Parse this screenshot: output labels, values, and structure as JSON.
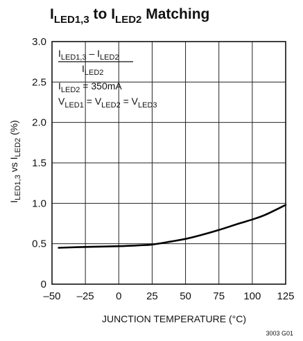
{
  "chart_data": {
    "type": "line",
    "title": {
      "main": "I",
      "sub1": "LED1,3",
      "mid": " to I",
      "sub2": "LED2",
      "tail": " Matching"
    },
    "xlabel": "JUNCTION TEMPERATURE (°C)",
    "ylabel": {
      "a": "I",
      "a_sub": "LED1,3",
      "b": " vs I",
      "b_sub": "LED2",
      "c": " (%)"
    },
    "xlim": [
      -50,
      125
    ],
    "ylim": [
      0,
      3.0
    ],
    "xticks": [
      -50,
      -25,
      0,
      25,
      50,
      75,
      100,
      125
    ],
    "xtick_labels": [
      "–50",
      "–25",
      "0",
      "25",
      "50",
      "75",
      "100",
      "125"
    ],
    "yticks": [
      0,
      0.5,
      1.0,
      1.5,
      2.0,
      2.5,
      3.0
    ],
    "ytick_labels": [
      "0",
      "0.5",
      "1.0",
      "1.5",
      "2.0",
      "2.5",
      "3.0"
    ],
    "grid": true,
    "series": [
      {
        "x": [
          -45,
          -25,
          0,
          15,
          25,
          40,
          50,
          60,
          75,
          90,
          100,
          110,
          125
        ],
        "y": [
          0.45,
          0.46,
          0.47,
          0.48,
          0.49,
          0.53,
          0.56,
          0.6,
          0.67,
          0.75,
          0.8,
          0.86,
          0.98
        ]
      }
    ],
    "annotation": {
      "frac_num": {
        "a": "I",
        "a_sub": "LED1,3",
        "b": " – I",
        "b_sub": "LED2"
      },
      "frac_den": {
        "a": "I",
        "a_sub": "LED2"
      },
      "line3": {
        "a": "I",
        "a_sub": "LED2",
        "b": " = 350mA"
      },
      "line4": {
        "a": "V",
        "a_sub": "LED1",
        "b": " = V",
        "b_sub": "LED2",
        "c": " = V",
        "c_sub": "LED3"
      }
    },
    "figure_id": "3003 G01"
  }
}
